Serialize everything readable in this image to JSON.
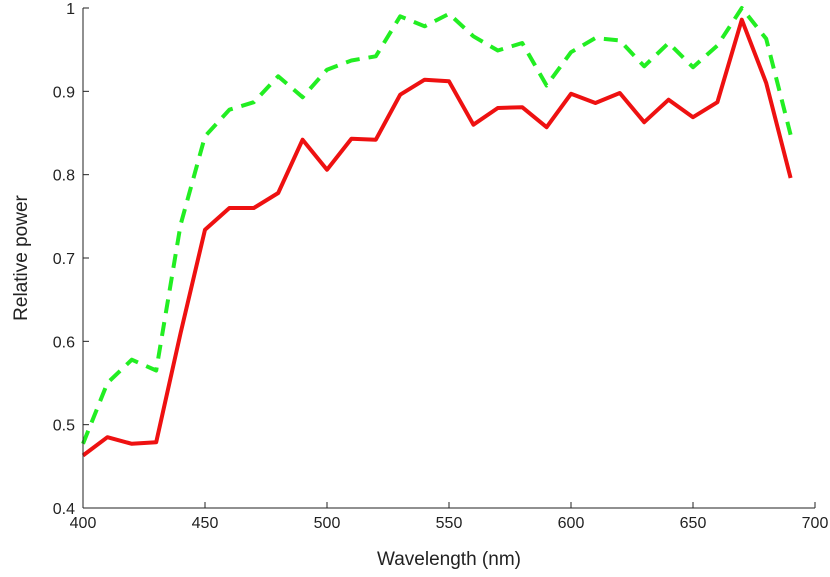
{
  "chart_data": {
    "type": "line",
    "title": "",
    "xlabel": "Wavelength (nm)",
    "ylabel": "Relative power",
    "xlim": [
      400,
      700
    ],
    "ylim": [
      0.4,
      1
    ],
    "xticks": [
      400,
      450,
      500,
      550,
      600,
      650,
      700
    ],
    "yticks": [
      0.4,
      0.5,
      0.6,
      0.7,
      0.8,
      0.9,
      1
    ],
    "xtick_labels": [
      "400",
      "450",
      "500",
      "550",
      "600",
      "650",
      "700"
    ],
    "ytick_labels": [
      "0.4",
      "0.5",
      "0.6",
      "0.7",
      "0.8",
      "0.9",
      "1"
    ],
    "grid": false,
    "legend": "none",
    "x": [
      400,
      410,
      420,
      430,
      440,
      450,
      460,
      470,
      480,
      490,
      500,
      510,
      520,
      530,
      540,
      550,
      560,
      570,
      580,
      590,
      600,
      610,
      620,
      630,
      640,
      650,
      660,
      670,
      680,
      690
    ],
    "series": [
      {
        "color": "#ee1111",
        "style": "solid",
        "values": [
          0.463,
          0.485,
          0.477,
          0.479,
          0.61,
          0.734,
          0.76,
          0.76,
          0.778,
          0.842,
          0.806,
          0.843,
          0.842,
          0.896,
          0.914,
          0.912,
          0.86,
          0.88,
          0.881,
          0.857,
          0.897,
          0.886,
          0.898,
          0.863,
          0.89,
          0.869,
          0.887,
          0.986,
          0.91,
          0.796
        ]
      },
      {
        "color": "#22ee22",
        "style": "dashed",
        "values": [
          0.477,
          0.55,
          0.578,
          0.565,
          0.74,
          0.846,
          0.878,
          0.887,
          0.918,
          0.893,
          0.926,
          0.937,
          0.942,
          0.99,
          0.978,
          0.993,
          0.966,
          0.949,
          0.958,
          0.907,
          0.947,
          0.964,
          0.961,
          0.93,
          0.958,
          0.929,
          0.955,
          1.0,
          0.963,
          0.848
        ]
      }
    ]
  }
}
